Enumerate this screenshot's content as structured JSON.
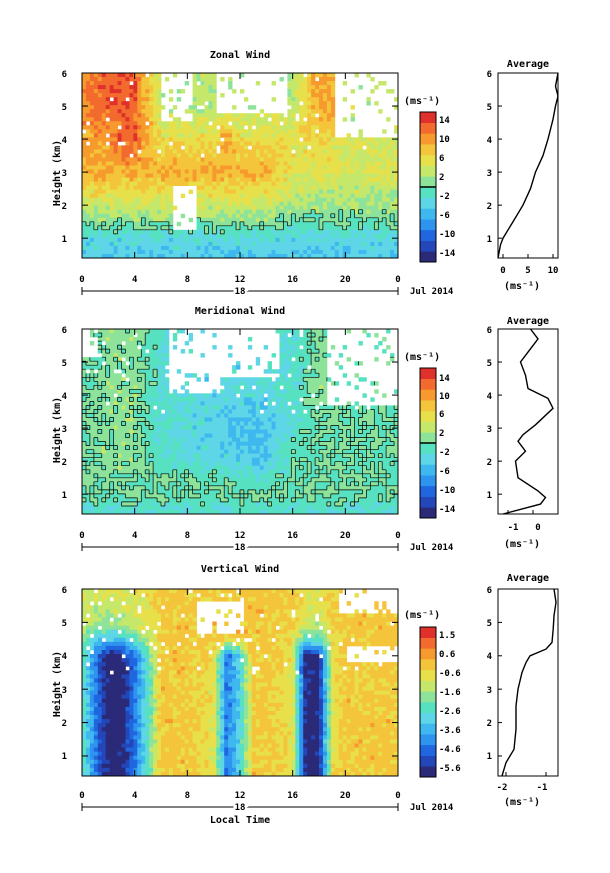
{
  "figure": {
    "x_axis_label": "Local Time",
    "date_label": "Jul 2014",
    "day_label": "18"
  },
  "chart_data": [
    {
      "type": "heatmap",
      "title": "Zonal Wind",
      "ylabel": "Height (km)",
      "xlabel": "Local Time",
      "units": "(ms⁻¹)",
      "x_range_hours": [
        0,
        24
      ],
      "x_ticks": [
        "0",
        "4",
        "8",
        "12",
        "16",
        "20",
        "0"
      ],
      "y_range_km": [
        0.4,
        6
      ],
      "y_ticks": [
        "1",
        "2",
        "3",
        "4",
        "5",
        "6"
      ],
      "colorbar_range": [
        -16,
        16
      ],
      "colorbar_ticks": [
        "14",
        "10",
        "6",
        "2",
        "-2",
        "-6",
        "-10",
        "-14"
      ],
      "field": {
        "times_h": [
          0,
          2,
          3,
          4,
          6,
          8,
          10,
          11,
          12,
          14,
          16,
          18,
          19,
          20,
          22,
          24
        ],
        "heights_km": [
          0.5,
          1.0,
          1.5,
          2.0,
          3.0,
          4.0,
          5.0,
          6.0
        ],
        "values_ms": [
          [
            -4,
            -4,
            -4,
            -4,
            -4,
            -4,
            -4,
            -4,
            -4,
            -4,
            -4,
            -4,
            -4,
            -4,
            -4,
            -4
          ],
          [
            -3,
            -3,
            -3,
            -3,
            -3,
            -3,
            -3,
            -3,
            -3,
            -3,
            -3,
            -3,
            -3,
            -3,
            -3,
            -3
          ],
          [
            1,
            1,
            1,
            1,
            1,
            1,
            1,
            1,
            1,
            1,
            0,
            0,
            0,
            0,
            0,
            0
          ],
          [
            4,
            4,
            4,
            4,
            4,
            4,
            4,
            4,
            4,
            4,
            2,
            2,
            2,
            2,
            2,
            2
          ],
          [
            9,
            9,
            9,
            9,
            9,
            9,
            9,
            9,
            9,
            9,
            5,
            5,
            5,
            5,
            5,
            5
          ],
          [
            10,
            10,
            13,
            13,
            6,
            6,
            6,
            10,
            6,
            6,
            6,
            6,
            6,
            4,
            4,
            4
          ],
          [
            11,
            13,
            13,
            13,
            3,
            3,
            3,
            3,
            3,
            3,
            3,
            10,
            10,
            3,
            3,
            3
          ],
          [
            11,
            13,
            13,
            13,
            3,
            3,
            3,
            3,
            3,
            3,
            3,
            10,
            10,
            3,
            3,
            3
          ]
        ]
      },
      "missing_blocks": [
        {
          "t0": 6.0,
          "t1": 8.3,
          "h0": 4.6,
          "h1": 6.0
        },
        {
          "t0": 10.2,
          "t1": 15.5,
          "h0": 4.8,
          "h1": 6.0
        },
        {
          "t0": 19.2,
          "t1": 24.0,
          "h0": 4.0,
          "h1": 6.0
        },
        {
          "t0": 6.8,
          "t1": 8.7,
          "h0": 1.3,
          "h1": 2.6
        }
      ],
      "contour_levels": [
        0
      ],
      "profile": {
        "title": "Average",
        "xlabel": "(ms⁻¹)",
        "x_range": [
          -1,
          11
        ],
        "x_ticks": [
          "0",
          "5",
          "10"
        ],
        "y_range_km": [
          0.4,
          6
        ],
        "y_ticks": [
          "1",
          "2",
          "3",
          "4",
          "5",
          "6"
        ],
        "height_km": [
          0.4,
          0.8,
          1.0,
          1.5,
          2.0,
          2.5,
          3.0,
          3.5,
          4.0,
          4.3,
          4.6,
          5.0,
          5.3,
          5.6,
          6.0
        ],
        "value_ms": [
          -1,
          -0.5,
          0,
          2,
          4,
          5.5,
          6.5,
          8,
          9,
          9.5,
          10,
          10.5,
          11,
          10.5,
          11
        ]
      }
    },
    {
      "type": "heatmap",
      "title": "Meridional Wind",
      "ylabel": "Height (km)",
      "xlabel": "Local Time",
      "units": "(ms⁻¹)",
      "x_range_hours": [
        0,
        24
      ],
      "x_ticks": [
        "0",
        "4",
        "8",
        "12",
        "16",
        "20",
        "0"
      ],
      "y_range_km": [
        0.4,
        6
      ],
      "y_ticks": [
        "1",
        "2",
        "3",
        "4",
        "5",
        "6"
      ],
      "colorbar_range": [
        -16,
        16
      ],
      "colorbar_ticks": [
        "14",
        "10",
        "6",
        "2",
        "-2",
        "-6",
        "-10",
        "-14"
      ],
      "field": {
        "times_h": [
          0,
          2,
          4,
          6,
          8,
          10,
          12,
          14,
          16,
          18,
          20,
          22,
          24
        ],
        "heights_km": [
          0.5,
          1.0,
          1.5,
          2.0,
          3.0,
          4.0,
          5.0,
          6.0
        ],
        "values_ms": [
          [
            -2,
            -2,
            -2,
            -2,
            -2,
            -2,
            -2,
            -2,
            -2,
            -2,
            -2,
            -2,
            -2
          ],
          [
            0,
            0,
            0,
            0,
            0,
            0,
            0,
            0,
            0,
            0,
            0,
            0,
            0
          ],
          [
            1,
            1,
            0,
            0,
            0,
            0,
            -2,
            -2,
            0,
            0,
            0,
            0,
            0
          ],
          [
            0,
            1,
            1,
            -2,
            -3,
            -3,
            -4,
            -4,
            0,
            0,
            0,
            0,
            0
          ],
          [
            0,
            1,
            1,
            -2,
            -3,
            -4,
            -5,
            -5,
            -2,
            0,
            0,
            0,
            0
          ],
          [
            0,
            1,
            1,
            -2,
            -3,
            -3,
            -3,
            -3,
            -2,
            1,
            0,
            0,
            0
          ],
          [
            0,
            1,
            1,
            -2,
            -3,
            -3,
            -3,
            -3,
            -2,
            1,
            0,
            0,
            0
          ],
          [
            0,
            1,
            1,
            -2,
            -3,
            -3,
            -3,
            -3,
            -2,
            1,
            0,
            0,
            0
          ]
        ]
      },
      "missing_blocks": [
        {
          "t0": 0.0,
          "t1": 1.2,
          "h0": 5.2,
          "h1": 6.0
        },
        {
          "t0": 6.5,
          "t1": 10.5,
          "h0": 4.0,
          "h1": 6.0
        },
        {
          "t0": 10.5,
          "t1": 15.0,
          "h0": 4.5,
          "h1": 6.0
        },
        {
          "t0": 18.5,
          "t1": 24.0,
          "h0": 3.7,
          "h1": 6.0
        }
      ],
      "contour_levels": [
        0
      ],
      "profile": {
        "title": "Average",
        "xlabel": "(ms⁻¹)",
        "x_range": [
          -1.4,
          1.0
        ],
        "x_ticks": [
          "-1",
          "0"
        ],
        "y_range_km": [
          0.4,
          6
        ],
        "y_ticks": [
          "1",
          "2",
          "3",
          "4",
          "5",
          "6"
        ],
        "height_km": [
          0.4,
          0.7,
          0.9,
          1.1,
          1.5,
          2.0,
          2.3,
          2.6,
          2.8,
          3.1,
          3.6,
          3.9,
          4.2,
          4.6,
          5.0,
          5.4,
          5.7,
          6.0
        ],
        "value_ms": [
          -1.2,
          0.3,
          0.5,
          0.2,
          -0.6,
          -0.7,
          -0.3,
          -0.6,
          -0.4,
          0.1,
          0.8,
          0.6,
          -0.2,
          -0.3,
          -0.5,
          -0.1,
          0.2,
          -0.1
        ]
      }
    },
    {
      "type": "heatmap",
      "title": "Vertical Wind",
      "ylabel": "Height (km)",
      "xlabel": "Local Time",
      "units": "(ms⁻¹)",
      "x_range_hours": [
        0,
        24
      ],
      "x_ticks": [
        "0",
        "4",
        "8",
        "12",
        "16",
        "20",
        "0"
      ],
      "y_range_km": [
        0.4,
        6
      ],
      "y_ticks": [
        "1",
        "2",
        "3",
        "4",
        "5",
        "6"
      ],
      "colorbar_range": [
        -6.2,
        1.8
      ],
      "colorbar_ticks": [
        "1.5",
        "0.6",
        "-0.6",
        "-1.6",
        "-2.6",
        "-3.6",
        "-4.6",
        "-5.6"
      ],
      "field": {
        "times_h": [
          0,
          1,
          2,
          3,
          4,
          5,
          6,
          8,
          10,
          11,
          12,
          13,
          14,
          16,
          17,
          18,
          19,
          20,
          22,
          24
        ],
        "heights_km": [
          0.5,
          1.0,
          2.0,
          3.0,
          4.0,
          4.5,
          5.0,
          6.0
        ],
        "values_ms": [
          [
            -2.5,
            -4.5,
            -6,
            -6,
            -4.5,
            -2.5,
            -0.3,
            -0.3,
            -0.8,
            -4.5,
            -3,
            -0.3,
            -0.3,
            -0.8,
            -6,
            -6,
            -0.8,
            -0.3,
            -0.3,
            -0.3
          ],
          [
            -2.5,
            -4.5,
            -6,
            -6,
            -4.5,
            -2.5,
            -0.3,
            -0.3,
            -0.8,
            -4.5,
            -3,
            -0.3,
            -0.3,
            -0.8,
            -6,
            -6,
            -0.8,
            -0.3,
            -0.3,
            -0.3
          ],
          [
            -2.5,
            -4.5,
            -6,
            -6,
            -4.5,
            -2.5,
            -0.3,
            -0.3,
            -0.8,
            -4.5,
            -3,
            -0.3,
            -0.3,
            -0.8,
            -6,
            -6,
            -0.8,
            -0.3,
            -0.3,
            -0.3
          ],
          [
            -2.5,
            -4.5,
            -6,
            -6,
            -4.5,
            -2.5,
            -0.3,
            -0.3,
            -0.8,
            -4.5,
            -3,
            -0.3,
            -0.3,
            -0.8,
            -6,
            -6,
            -0.8,
            -0.3,
            -0.3,
            -0.3
          ],
          [
            -2.5,
            -4.5,
            -6,
            -6,
            -4.5,
            -2.5,
            -0.3,
            -0.3,
            -0.8,
            -4.5,
            -3,
            -0.3,
            -0.3,
            -0.8,
            -6,
            -6,
            -0.8,
            -0.3,
            -0.3,
            -0.3
          ],
          [
            -1.8,
            -3.2,
            -3.2,
            -3.2,
            -2.5,
            -1.5,
            -0.3,
            -0.3,
            -0.3,
            -0.3,
            -0.3,
            -0.3,
            -0.3,
            -0.8,
            -2.5,
            -2.5,
            -0.8,
            -0.3,
            -0.3,
            -0.3
          ],
          [
            -1.2,
            -1.6,
            -1.6,
            -1.6,
            -1.2,
            -0.8,
            -0.3,
            -0.3,
            -0.3,
            -0.3,
            -0.3,
            -0.3,
            -0.3,
            -0.3,
            -1.2,
            -1.2,
            -0.3,
            -0.3,
            -0.3,
            -0.3
          ],
          [
            -0.8,
            -1.0,
            -1.0,
            -1.0,
            -0.8,
            -0.8,
            -0.3,
            -0.3,
            -0.3,
            -0.3,
            -0.3,
            -0.3,
            -0.3,
            -0.3,
            -0.8,
            -0.8,
            -0.3,
            -0.3,
            -0.3,
            -0.3
          ]
        ]
      },
      "missing_blocks": [
        {
          "t0": 19.5,
          "t1": 24.0,
          "h0": 5.3,
          "h1": 6.0
        },
        {
          "t0": 20.0,
          "t1": 24.0,
          "h0": 3.8,
          "h1": 4.3
        },
        {
          "t0": 8.8,
          "t1": 12.3,
          "h0": 4.7,
          "h1": 5.6
        }
      ],
      "contour_levels": [],
      "profile": {
        "title": "Average",
        "xlabel": "(ms⁻¹)",
        "x_range": [
          -2.2,
          -0.7
        ],
        "x_ticks": [
          "-2",
          "-1"
        ],
        "y_range_km": [
          0.4,
          6
        ],
        "y_ticks": [
          "1",
          "2",
          "3",
          "4",
          "5",
          "6"
        ],
        "height_km": [
          0.4,
          0.8,
          1.2,
          1.8,
          2.5,
          3.0,
          3.5,
          3.8,
          4.0,
          4.2,
          4.4,
          4.8,
          5.2,
          5.6,
          6.0
        ],
        "value_ms": [
          -2.1,
          -2.0,
          -1.8,
          -1.75,
          -1.75,
          -1.7,
          -1.6,
          -1.5,
          -1.4,
          -1.0,
          -0.85,
          -0.82,
          -0.8,
          -0.75,
          -0.8
        ]
      }
    }
  ]
}
